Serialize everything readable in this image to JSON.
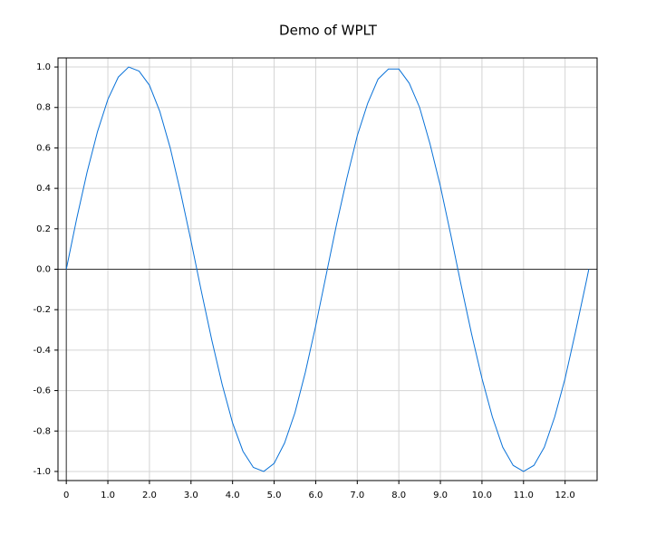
{
  "chart_data": {
    "type": "line",
    "title": "Demo of WPLT",
    "x": [
      0,
      0.25,
      0.5,
      0.75,
      1.0,
      1.25,
      1.5,
      1.75,
      2.0,
      2.25,
      2.5,
      2.75,
      3.0,
      3.25,
      3.5,
      3.75,
      4.0,
      4.25,
      4.5,
      4.75,
      5.0,
      5.25,
      5.5,
      5.75,
      6.0,
      6.25,
      6.5,
      6.75,
      7.0,
      7.25,
      7.5,
      7.75,
      8.0,
      8.25,
      8.5,
      8.75,
      9.0,
      9.25,
      9.5,
      9.75,
      10.0,
      10.25,
      10.5,
      10.75,
      11.0,
      11.25,
      11.5,
      11.75,
      12.0,
      12.25,
      12.5,
      12.57
    ],
    "values": [
      0,
      0.25,
      0.48,
      0.68,
      0.84,
      0.95,
      1.0,
      0.98,
      0.91,
      0.78,
      0.6,
      0.38,
      0.14,
      -0.11,
      -0.35,
      -0.57,
      -0.76,
      -0.9,
      -0.98,
      -1.0,
      -0.96,
      -0.86,
      -0.71,
      -0.51,
      -0.28,
      -0.03,
      0.22,
      0.45,
      0.66,
      0.82,
      0.94,
      0.99,
      0.99,
      0.92,
      0.8,
      0.62,
      0.41,
      0.17,
      -0.08,
      -0.32,
      -0.54,
      -0.73,
      -0.88,
      -0.97,
      -1.0,
      -0.97,
      -0.88,
      -0.73,
      -0.54,
      -0.31,
      -0.07,
      0.0
    ],
    "color": "#0a72d8",
    "xlim": [
      -0.2,
      12.77
    ],
    "ylim": [
      -1.045,
      1.045
    ],
    "xticks": [
      0,
      {
        "value": 1,
        "label": "1.0"
      },
      {
        "value": 2,
        "label": "2.0"
      },
      {
        "value": 3,
        "label": "3.0"
      },
      {
        "value": 4,
        "label": "4.0"
      },
      {
        "value": 5,
        "label": "5.0"
      },
      {
        "value": 6,
        "label": "6.0"
      },
      {
        "value": 7,
        "label": "7.0"
      },
      {
        "value": 8,
        "label": "8.0"
      },
      {
        "value": 9,
        "label": "9.0"
      },
      {
        "value": 10,
        "label": "10.0"
      },
      {
        "value": 11,
        "label": "11.0"
      },
      {
        "value": 12,
        "label": "12.0"
      }
    ],
    "yticks": [
      {
        "value": -1,
        "label": "-1.0"
      },
      -0.8,
      -0.6,
      -0.4,
      -0.2,
      {
        "value": 0,
        "label": "0.0"
      },
      0.2,
      0.4,
      0.6,
      0.8,
      {
        "value": 1,
        "label": "1.0"
      }
    ],
    "grid": true
  }
}
